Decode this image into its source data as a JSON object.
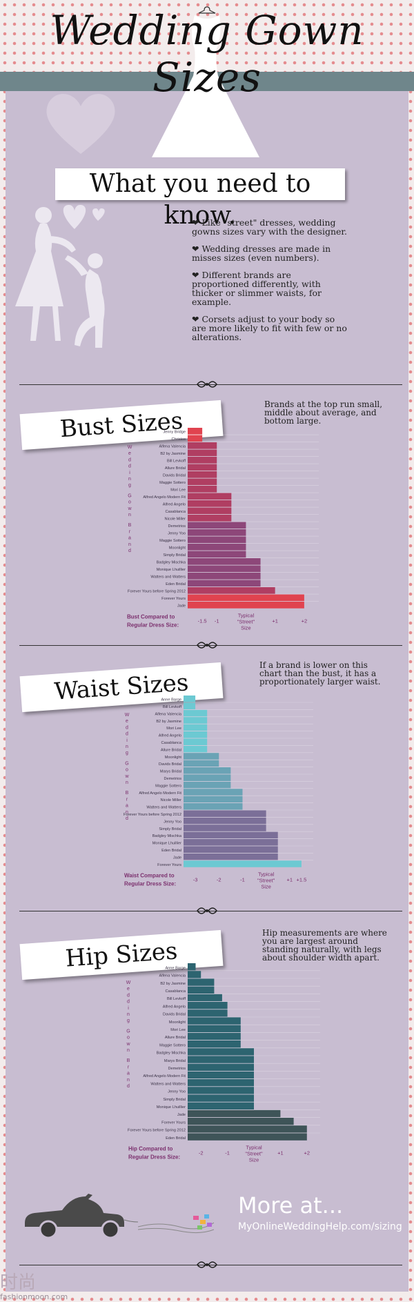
{
  "header": {
    "title": "Wedding Gown Sizes",
    "subtitle": "What you need to know."
  },
  "tips": [
    "Like \"street\" dresses, wedding gowns sizes vary with the designer.",
    "Wedding dresses are made in misses sizes (even numbers).",
    "Different brands are proportioned differently, with thicker or slimmer waists, for example.",
    "Corsets adjust to your body so are more likely to fit with few or no alterations."
  ],
  "footer": {
    "more": "More at...",
    "url": "MyOnlineWeddingHelp.com/sizing",
    "watermark": "时尚",
    "watermark_sub": "fashionmoon.com"
  },
  "colors": {
    "background": "#c8bdd1",
    "bust_a": "#e0434f",
    "bust_b": "#b03e62",
    "bust_c": "#8d4779",
    "waist_a": "#6cc9d2",
    "waist_b": "#6aa3b5",
    "waist_c": "#7b6f98",
    "hip": "#2d6470",
    "hip_dark": "#3e5458"
  },
  "chart_data": [
    {
      "type": "bar",
      "orientation": "horizontal",
      "title": "Bust Sizes",
      "note": "Brands at the top run small, middle about average, and bottom large.",
      "ylabel": "Wedding Gown Brand",
      "xlabel_lines": [
        "Bust Compared to",
        "Regular Dress Size:"
      ],
      "typical_label": [
        "Typical",
        "\"Street\"",
        "Size"
      ],
      "ticks": [
        {
          "label": "-1.5",
          "value": -1.5
        },
        {
          "label": "-1",
          "value": -1
        },
        {
          "label": "+1",
          "value": 1
        },
        {
          "label": "+2",
          "value": 2
        }
      ],
      "xlim": [
        -2,
        2.5
      ],
      "categories": [
        "Jenny Bridge",
        "Christos",
        "Alfena Valencia",
        "B2 by Jasmine",
        "Bill Levkoff",
        "Allure Bridal",
        "Davids Bridal",
        "Maggie Sottero",
        "Mori Lee",
        "Alfred Angelo Modern Fit",
        "Alfred Angelo",
        "Casablanca",
        "Nicole Miller",
        "Demetrios",
        "Jenny Yoo",
        "Maggie Sottero",
        "Moonlight",
        "Simply Bridal",
        "Badgley Mischka",
        "Monique Lhuillier",
        "Watters and Watters",
        "Eden Bridal",
        "Forever Yours before Spring 2012",
        "Forever Yours",
        "Jade"
      ],
      "values": [
        -1.5,
        -1.5,
        -1,
        -1,
        -1,
        -1,
        -1,
        -1,
        -1,
        -0.5,
        -0.5,
        -0.5,
        -0.5,
        0,
        0,
        0,
        0,
        0,
        0.5,
        0.5,
        0.5,
        0.5,
        1,
        2,
        2
      ]
    },
    {
      "type": "bar",
      "orientation": "horizontal",
      "title": "Waist Sizes",
      "note": "If a brand is lower on this chart than the bust, it has a proportionately larger waist.",
      "ylabel": "Wedding Gown Brand",
      "xlabel_lines": [
        "Waist Compared to",
        "Regular Dress Size:"
      ],
      "typical_label": [
        "Typical",
        "\"Street\"",
        "Size"
      ],
      "ticks": [
        {
          "label": "-3",
          "value": -3
        },
        {
          "label": "-2",
          "value": -2
        },
        {
          "label": "-1",
          "value": -1
        },
        {
          "label": "+1",
          "value": 1
        },
        {
          "label": "+1.5",
          "value": 1.5
        }
      ],
      "xlim": [
        -3.5,
        2
      ],
      "categories": [
        "Anne Barge",
        "Bill Levkoff",
        "Alfena Valencia",
        "B2 by Jasmine",
        "Mori Lee",
        "Alfred Angelo",
        "Casablanca",
        "Allure Bridal",
        "Moonlight",
        "Davids Bridal",
        "Marys Bridal",
        "Demetrios",
        "Maggie Sottero",
        "Alfred Angelo Modern Fit",
        "Nicole Miller",
        "Watters and Watters",
        "Forever Yours before Spring 2012",
        "Jenny Yoo",
        "Simply Bridal",
        "Badgley Mischka",
        "Monique Lhuillier",
        "Eden Bridal",
        "Jade",
        "Forever Yours"
      ],
      "values": [
        -3,
        -3,
        -2.5,
        -2.5,
        -2.5,
        -2.5,
        -2.5,
        -2.5,
        -2,
        -2,
        -1.5,
        -1.5,
        -1.5,
        -1,
        -1,
        -1,
        0,
        0,
        0,
        0.5,
        0.5,
        0.5,
        0.5,
        1.5
      ]
    },
    {
      "type": "bar",
      "orientation": "horizontal",
      "title": "Hip Sizes",
      "note": "Hip measurements are where you are largest around standing naturally, with legs about shoulder width apart.",
      "ylabel": "Wedding Gown Brand",
      "xlabel_lines": [
        "Hip Compared to",
        "Regular Dress Size:"
      ],
      "typical_label": [
        "Typical",
        "\"Street\"",
        "Size"
      ],
      "ticks": [
        {
          "label": "-2",
          "value": -2
        },
        {
          "label": "-1",
          "value": -1
        },
        {
          "label": "+1",
          "value": 1
        },
        {
          "label": "+2",
          "value": 2
        }
      ],
      "xlim": [
        -2.5,
        2.5
      ],
      "categories": [
        "Anne Barge",
        "Alfena Valencia",
        "B2 by Jasmine",
        "Casablanca",
        "Bill Levkoff",
        "Alfred Angelo",
        "Davids Bridal",
        "Moonlight",
        "Mori Lee",
        "Allure Bridal",
        "Maggie Sottero",
        "Badgley Mischka",
        "Marys Bridal",
        "Demetrios",
        "Alfred Angelo Modern Fit",
        "Watters and Watters",
        "Jenny Yoo",
        "Simply Bridal",
        "Monique Lhuillier",
        "Jade",
        "Forever Yours",
        "Forever Yours before Spring 2012",
        "Eden Bridal"
      ],
      "values": [
        -2.2,
        -2,
        -1.5,
        -1.5,
        -1.2,
        -1,
        -1,
        -0.5,
        -0.5,
        -0.5,
        -0.5,
        0,
        0,
        0,
        0,
        0,
        0,
        0,
        0,
        1,
        1.5,
        2,
        2
      ]
    }
  ]
}
